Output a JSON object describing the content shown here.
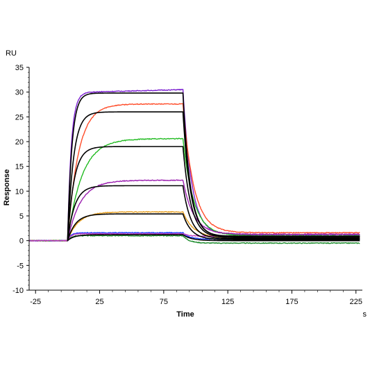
{
  "chart_data": {
    "type": "line",
    "title": "",
    "xlabel": "Time",
    "ylabel": "Response",
    "y_unit": "RU",
    "x_unit": "s",
    "xlim": [
      -30,
      230
    ],
    "ylim": [
      -10,
      35
    ],
    "x_ticks": [
      -25,
      25,
      75,
      125,
      175,
      225
    ],
    "y_ticks": [
      -10,
      -5,
      0,
      5,
      10,
      15,
      20,
      25,
      30,
      35
    ],
    "grid": false,
    "legend": "none",
    "injection_start": 0,
    "injection_end": 90,
    "curves": [
      {
        "color": "#7b1fd0",
        "t0": 0,
        "plateau": 30.5,
        "k_on": 0.35,
        "drift": 0.6,
        "k_off": 0.15,
        "residual": 1.2
      },
      {
        "color": "#ff4d2a",
        "t0": 0,
        "plateau": 27.6,
        "k_on": 0.12,
        "drift": 0.0,
        "k_off": 0.12,
        "residual": 1.6
      },
      {
        "color": "#22bb22",
        "t0": 0,
        "plateau": 20.6,
        "k_on": 0.09,
        "drift": 0.0,
        "k_off": 0.12,
        "residual": 1.0
      },
      {
        "color": "#9b1fb0",
        "t0": 0,
        "plateau": 12.2,
        "k_on": 0.1,
        "drift": 0.0,
        "k_off": 0.12,
        "residual": 1.3
      },
      {
        "color": "#e8a020",
        "t0": 0,
        "plateau": 5.8,
        "k_on": 0.12,
        "drift": 0.0,
        "k_off": 0.12,
        "residual": 0.6
      },
      {
        "color": "#1a3cff",
        "t0": 0,
        "plateau": 1.6,
        "k_on": 0.4,
        "drift": 0.0,
        "k_off": 0.2,
        "residual": 0.3
      },
      {
        "color": "#1a8a2a",
        "t0": 0,
        "plateau": 1.0,
        "k_on": 0.4,
        "drift": 0.0,
        "k_off": 0.2,
        "residual": -0.5
      },
      {
        "color": "#c040c0",
        "t0": 0,
        "plateau": 1.4,
        "k_on": 0.4,
        "drift": 0.0,
        "k_off": 0.2,
        "residual": 0.9
      }
    ],
    "fits": [
      {
        "color": "#000000",
        "plateau": 29.8,
        "k_on": 0.3,
        "k_off": 0.18,
        "residual": 0.9
      },
      {
        "color": "#000000",
        "plateau": 26.0,
        "k_on": 0.22,
        "k_off": 0.17,
        "residual": 0.8
      },
      {
        "color": "#000000",
        "plateau": 19.0,
        "k_on": 0.2,
        "k_off": 0.16,
        "residual": 0.6
      },
      {
        "color": "#000000",
        "plateau": 11.1,
        "k_on": 0.18,
        "k_off": 0.16,
        "residual": 0.4
      },
      {
        "color": "#000000",
        "plateau": 5.4,
        "k_on": 0.16,
        "k_off": 0.15,
        "residual": 0.2
      },
      {
        "color": "#000000",
        "plateau": 1.2,
        "k_on": 0.2,
        "k_off": 0.15,
        "residual": 0.0
      }
    ]
  }
}
